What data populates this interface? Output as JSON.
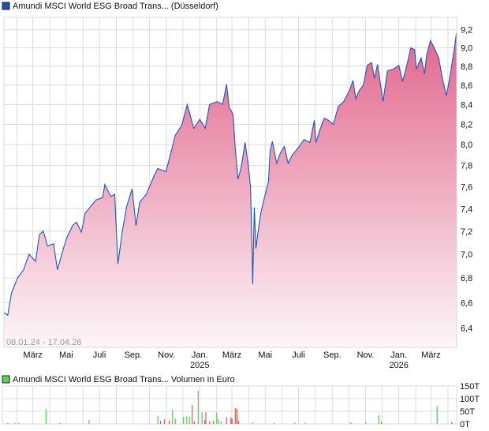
{
  "chart_data": [
    {
      "type": "area",
      "title": "Amundi MSCI World ESG Broad Trans... (Düsseldorf)",
      "legend_color": "#1f4fb4",
      "line_color": "#1a56c4",
      "fill_color_top": "#e2658c",
      "fill_color_bottom": "#fdf6f9",
      "date_range_label": "08.01.24 - 17.04.26",
      "y_scale": "log",
      "ylim": [
        6.25,
        9.34
      ],
      "xlim": [
        "2024-01-08",
        "2026-04-17"
      ],
      "grid": true,
      "y_ticks": [
        9.2,
        9.0,
        8.8,
        8.6,
        8.4,
        8.2,
        8.0,
        7.8,
        7.6,
        7.4,
        7.2,
        7.0,
        6.8,
        6.6,
        6.4
      ],
      "y_tick_labels": [
        "9,2",
        "9,0",
        "8,8",
        "8,6",
        "8,4",
        "8,2",
        "8,0",
        "7,8",
        "7,6",
        "7,4",
        "7,2",
        "7,0",
        "6,8",
        "6,6",
        "6,4"
      ],
      "x_ticks": [
        {
          "date": "2024-03-01",
          "label": "März",
          "year": ""
        },
        {
          "date": "2024-05-01",
          "label": "Mai",
          "year": ""
        },
        {
          "date": "2024-07-01",
          "label": "Juli",
          "year": ""
        },
        {
          "date": "2024-09-01",
          "label": "Sep.",
          "year": ""
        },
        {
          "date": "2024-11-01",
          "label": "Nov.",
          "year": ""
        },
        {
          "date": "2025-01-01",
          "label": "Jan.",
          "year": "2025"
        },
        {
          "date": "2025-03-01",
          "label": "März",
          "year": ""
        },
        {
          "date": "2025-05-01",
          "label": "Mai",
          "year": ""
        },
        {
          "date": "2025-07-01",
          "label": "Juli",
          "year": ""
        },
        {
          "date": "2025-09-01",
          "label": "Sep.",
          "year": ""
        },
        {
          "date": "2025-11-01",
          "label": "Nov.",
          "year": ""
        },
        {
          "date": "2026-01-01",
          "label": "Jan.",
          "year": "2026"
        },
        {
          "date": "2026-03-01",
          "label": "März",
          "year": ""
        }
      ],
      "points": [
        [
          "2024-01-08",
          6.52
        ],
        [
          "2024-01-15",
          6.5
        ],
        [
          "2024-01-22",
          6.68
        ],
        [
          "2024-02-02",
          6.8
        ],
        [
          "2024-02-13",
          6.87
        ],
        [
          "2024-02-23",
          7.0
        ],
        [
          "2024-03-06",
          6.94
        ],
        [
          "2024-03-13",
          7.17
        ],
        [
          "2024-03-20",
          7.2
        ],
        [
          "2024-03-28",
          7.07
        ],
        [
          "2024-04-08",
          7.09
        ],
        [
          "2024-04-15",
          6.87
        ],
        [
          "2024-04-26",
          7.05
        ],
        [
          "2024-05-03",
          7.15
        ],
        [
          "2024-05-13",
          7.25
        ],
        [
          "2024-05-20",
          7.28
        ],
        [
          "2024-05-29",
          7.19
        ],
        [
          "2024-06-05",
          7.36
        ],
        [
          "2024-06-15",
          7.42
        ],
        [
          "2024-06-25",
          7.48
        ],
        [
          "2024-07-07",
          7.5
        ],
        [
          "2024-07-11",
          7.62
        ],
        [
          "2024-07-22",
          7.51
        ],
        [
          "2024-07-29",
          7.53
        ],
        [
          "2024-08-04",
          6.92
        ],
        [
          "2024-08-12",
          7.2
        ],
        [
          "2024-08-20",
          7.42
        ],
        [
          "2024-08-30",
          7.58
        ],
        [
          "2024-09-06",
          7.25
        ],
        [
          "2024-09-13",
          7.46
        ],
        [
          "2024-09-25",
          7.53
        ],
        [
          "2024-10-09",
          7.7
        ],
        [
          "2024-10-16",
          7.77
        ],
        [
          "2024-10-31",
          7.74
        ],
        [
          "2024-11-10",
          7.94
        ],
        [
          "2024-11-17",
          8.09
        ],
        [
          "2024-11-29",
          8.19
        ],
        [
          "2024-12-09",
          8.4
        ],
        [
          "2024-12-21",
          8.16
        ],
        [
          "2025-01-01",
          8.25
        ],
        [
          "2025-01-11",
          8.16
        ],
        [
          "2025-01-19",
          8.4
        ],
        [
          "2025-02-02",
          8.43
        ],
        [
          "2025-02-12",
          8.4
        ],
        [
          "2025-02-19",
          8.61
        ],
        [
          "2025-02-24",
          8.37
        ],
        [
          "2025-03-03",
          8.3
        ],
        [
          "2025-03-07",
          7.97
        ],
        [
          "2025-03-12",
          7.67
        ],
        [
          "2025-03-18",
          7.78
        ],
        [
          "2025-03-25",
          8.02
        ],
        [
          "2025-03-31",
          7.8
        ],
        [
          "2025-04-04",
          7.6
        ],
        [
          "2025-04-07",
          7.01
        ],
        [
          "2025-04-08",
          6.75
        ],
        [
          "2025-04-11",
          7.41
        ],
        [
          "2025-04-14",
          7.05
        ],
        [
          "2025-04-18",
          7.2
        ],
        [
          "2025-04-23",
          7.36
        ],
        [
          "2025-04-30",
          7.51
        ],
        [
          "2025-05-07",
          7.65
        ],
        [
          "2025-05-10",
          7.94
        ],
        [
          "2025-05-14",
          8.03
        ],
        [
          "2025-05-22",
          7.82
        ],
        [
          "2025-05-29",
          7.92
        ],
        [
          "2025-06-05",
          7.98
        ],
        [
          "2025-06-12",
          7.82
        ],
        [
          "2025-06-20",
          7.9
        ],
        [
          "2025-07-01",
          7.97
        ],
        [
          "2025-07-11",
          8.05
        ],
        [
          "2025-07-22",
          8.02
        ],
        [
          "2025-07-30",
          8.24
        ],
        [
          "2025-08-02",
          8.02
        ],
        [
          "2025-08-09",
          8.14
        ],
        [
          "2025-08-17",
          8.26
        ],
        [
          "2025-08-25",
          8.24
        ],
        [
          "2025-09-03",
          8.2
        ],
        [
          "2025-09-12",
          8.38
        ],
        [
          "2025-09-22",
          8.43
        ],
        [
          "2025-10-02",
          8.54
        ],
        [
          "2025-10-09",
          8.65
        ],
        [
          "2025-10-14",
          8.46
        ],
        [
          "2025-10-21",
          8.55
        ],
        [
          "2025-10-28",
          8.6
        ],
        [
          "2025-11-04",
          8.81
        ],
        [
          "2025-11-12",
          8.84
        ],
        [
          "2025-11-17",
          8.67
        ],
        [
          "2025-11-23",
          8.82
        ],
        [
          "2025-11-29",
          8.58
        ],
        [
          "2025-12-03",
          8.43
        ],
        [
          "2025-12-11",
          8.75
        ],
        [
          "2025-12-22",
          8.77
        ],
        [
          "2026-01-01",
          8.81
        ],
        [
          "2026-01-08",
          8.64
        ],
        [
          "2026-01-16",
          8.82
        ],
        [
          "2026-01-23",
          9.0
        ],
        [
          "2026-01-30",
          8.98
        ],
        [
          "2026-02-02",
          8.77
        ],
        [
          "2026-02-11",
          8.89
        ],
        [
          "2026-02-17",
          8.72
        ],
        [
          "2026-02-21",
          8.92
        ],
        [
          "2026-02-28",
          9.08
        ],
        [
          "2026-03-07",
          9.0
        ],
        [
          "2026-03-15",
          8.89
        ],
        [
          "2026-03-22",
          8.67
        ],
        [
          "2026-03-29",
          8.49
        ],
        [
          "2026-04-05",
          8.7
        ],
        [
          "2026-04-13",
          9.0
        ],
        [
          "2026-04-17",
          9.18
        ]
      ]
    },
    {
      "type": "bar",
      "title": "Amundi MSCI World ESG Broad Trans... Volumen in Euro",
      "legend_color": "#5ccf5c",
      "up_color": "#55cc55",
      "down_color": "#e05555",
      "ylim": [
        0,
        150
      ],
      "unit": "T",
      "y_ticks": [
        150,
        100,
        50,
        0
      ],
      "y_tick_labels": [
        "150T",
        "100T",
        "50T",
        "0T"
      ],
      "grid": true,
      "bars": [
        [
          "2024-01-15",
          4,
          "up"
        ],
        [
          "2024-01-28",
          5,
          "up"
        ],
        [
          "2024-02-04",
          4,
          "up"
        ],
        [
          "2024-03-25",
          59,
          "up"
        ],
        [
          "2024-04-20",
          3,
          "down"
        ],
        [
          "2024-06-12",
          16,
          "up"
        ],
        [
          "2024-10-16",
          32,
          "up"
        ],
        [
          "2024-10-21",
          12,
          "down"
        ],
        [
          "2024-10-28",
          18,
          "down"
        ],
        [
          "2024-11-06",
          14,
          "down"
        ],
        [
          "2024-11-12",
          55,
          "up"
        ],
        [
          "2024-11-17",
          20,
          "up"
        ],
        [
          "2024-12-02",
          28,
          "up"
        ],
        [
          "2024-12-08",
          30,
          "up"
        ],
        [
          "2024-12-13",
          28,
          "up"
        ],
        [
          "2024-12-18",
          75,
          "down"
        ],
        [
          "2024-12-22",
          10,
          "down"
        ],
        [
          "2024-12-29",
          132,
          "up"
        ],
        [
          "2025-01-05",
          46,
          "up"
        ],
        [
          "2025-01-10",
          15,
          "down"
        ],
        [
          "2025-01-12",
          46,
          "down"
        ],
        [
          "2025-01-19",
          10,
          "down"
        ],
        [
          "2025-01-26",
          12,
          "down"
        ],
        [
          "2025-02-01",
          46,
          "up"
        ],
        [
          "2025-02-04",
          18,
          "up"
        ],
        [
          "2025-02-09",
          10,
          "up"
        ],
        [
          "2025-02-19",
          27,
          "down"
        ],
        [
          "2025-02-27",
          27,
          "down"
        ],
        [
          "2025-03-01",
          20,
          "down"
        ],
        [
          "2025-03-07",
          62,
          "down"
        ],
        [
          "2025-03-10",
          59,
          "down"
        ],
        [
          "2025-03-13",
          12,
          "down"
        ],
        [
          "2025-04-08",
          6,
          "up"
        ],
        [
          "2025-05-17",
          4,
          "up"
        ],
        [
          "2025-06-24",
          5,
          "up"
        ],
        [
          "2025-07-13",
          5,
          "up"
        ],
        [
          "2025-10-05",
          6,
          "up"
        ],
        [
          "2025-11-01",
          8,
          "up"
        ],
        [
          "2025-11-25",
          35,
          "up"
        ],
        [
          "2025-11-30",
          8,
          "down"
        ],
        [
          "2026-03-12",
          71,
          "up"
        ],
        [
          "2026-04-08",
          8,
          "down"
        ]
      ]
    }
  ]
}
